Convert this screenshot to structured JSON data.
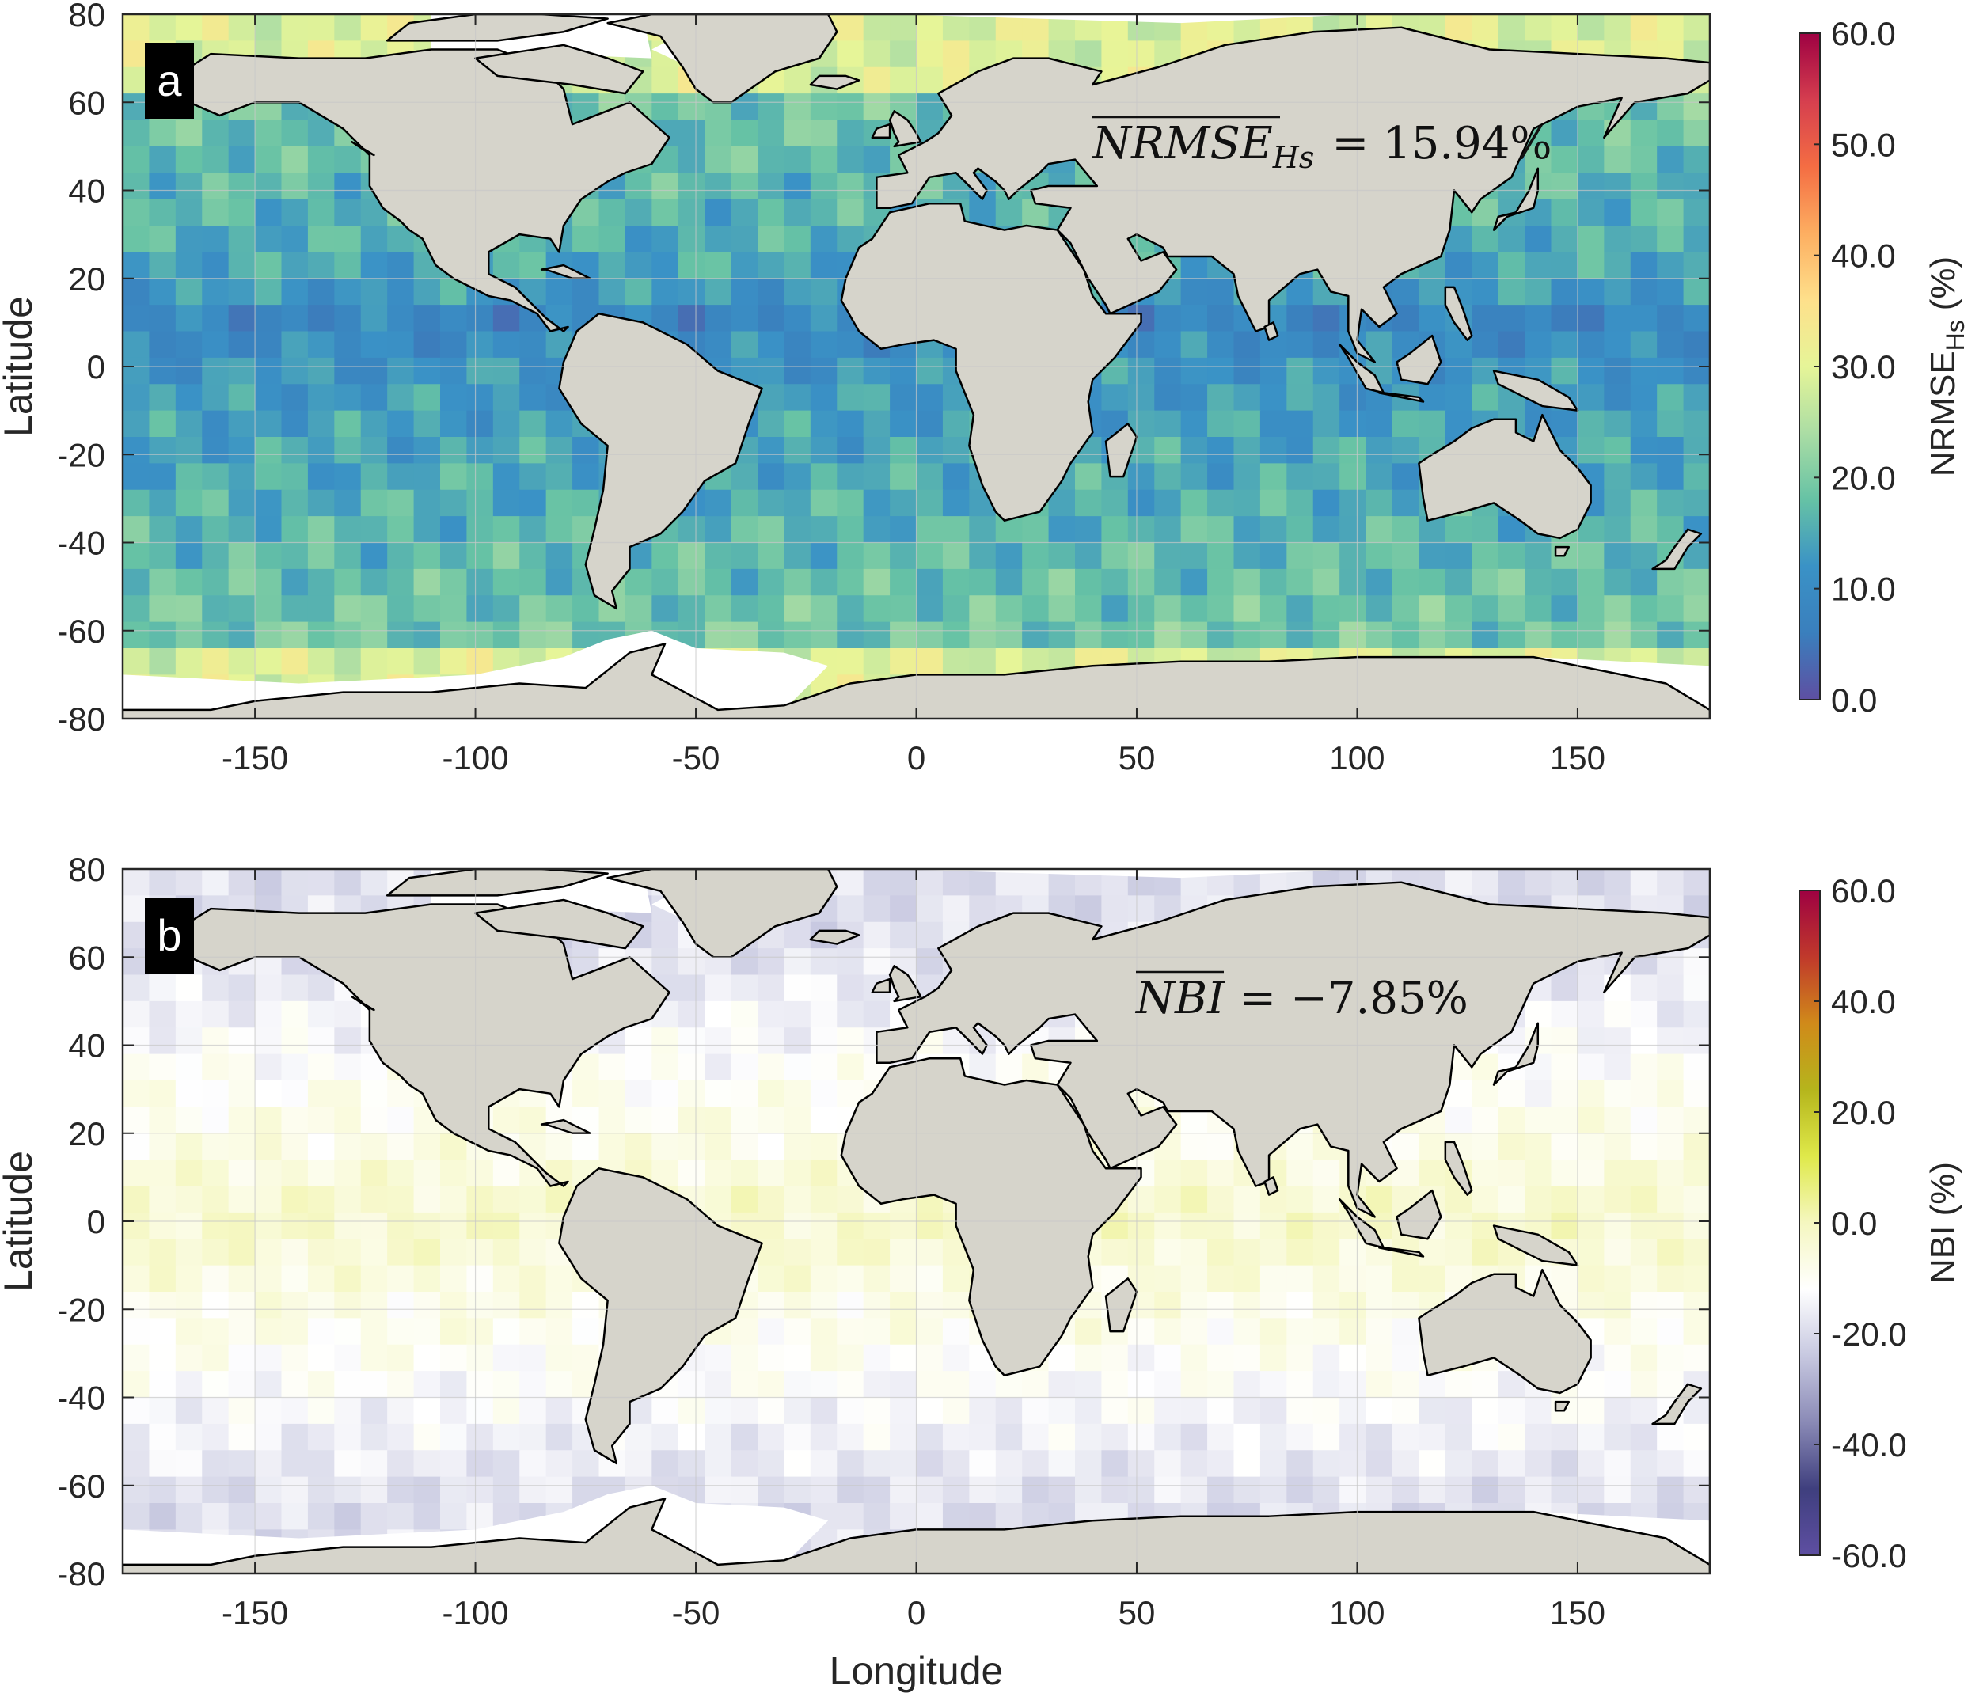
{
  "figure": {
    "colors": {
      "land": "#d6d4cb",
      "ice": "#ffffff",
      "coast": "#000000",
      "grid": "#c8c8c8",
      "frame": "#262626"
    },
    "icons": {
      "panel_label_bg": "black-square"
    }
  },
  "chart_data": [
    {
      "type": "heatmap",
      "panel_label": "a",
      "stat_label": "NRMSE_Hs = 15.94%",
      "stat_prefix": "NRMSE",
      "stat_sub": "Hs",
      "stat_value": "= 15.94%",
      "xlabel": "",
      "ylabel": "Latitude",
      "xlim": [
        -180,
        180
      ],
      "ylim": [
        -80,
        80
      ],
      "xticks": [
        -150,
        -100,
        -50,
        0,
        50,
        100,
        150
      ],
      "yticks": [
        80,
        60,
        40,
        20,
        0,
        -20,
        -40,
        -60,
        -80
      ],
      "xtick_labels": [
        "-150",
        "-100",
        "-50",
        "0",
        "50",
        "100",
        "150"
      ],
      "ytick_labels": [
        "80",
        "60",
        "40",
        "20",
        "0",
        "-20",
        "-40",
        "-60",
        "-80"
      ],
      "grid": true,
      "colorbar": {
        "label": "NRMSE",
        "label_sub": "Hs",
        "label_unit": "(%)",
        "range": [
          0,
          60
        ],
        "ticks": [
          60,
          50,
          40,
          30,
          20,
          10,
          0
        ],
        "tick_labels": [
          "60.0",
          "50.0",
          "40.0",
          "30.0",
          "20.0",
          "10.0",
          "0.0"
        ],
        "colors": [
          "#5e4fa2",
          "#3a7fbd",
          "#3a92c6",
          "#66c2a5",
          "#abdda4",
          "#e6f598",
          "#fee08b",
          "#fdae61",
          "#f46d43",
          "#d53e4f",
          "#9e0142"
        ]
      },
      "mean_value_percent": 15.94
    },
    {
      "type": "heatmap",
      "panel_label": "b",
      "stat_label": "NBI = −7.85%",
      "stat_prefix": "NBI",
      "stat_sub": "",
      "stat_value": "= −7.85%",
      "xlabel": "Longitude",
      "ylabel": "Latitude",
      "xlim": [
        -180,
        180
      ],
      "ylim": [
        -80,
        80
      ],
      "xticks": [
        -150,
        -100,
        -50,
        0,
        50,
        100,
        150
      ],
      "yticks": [
        80,
        60,
        40,
        20,
        0,
        -20,
        -40,
        -60,
        -80
      ],
      "xtick_labels": [
        "-150",
        "-100",
        "-50",
        "0",
        "50",
        "100",
        "150"
      ],
      "ytick_labels": [
        "80",
        "60",
        "40",
        "20",
        "0",
        "-20",
        "-40",
        "-60",
        "-80"
      ],
      "grid": true,
      "colorbar": {
        "label": "NBI (%)",
        "label_sub": "",
        "label_unit": "",
        "range": [
          -60,
          60
        ],
        "ticks": [
          60,
          40,
          20,
          0,
          -20,
          -40,
          -60
        ],
        "tick_labels": [
          "60.0",
          "40.0",
          "20.0",
          "0.0",
          "-20.0",
          "-40.0",
          "-60.0"
        ],
        "colors": [
          "#5e4fa2",
          "#3f3f7e",
          "#8a8ab6",
          "#c7c8e0",
          "#ffffff",
          "#f5f7c0",
          "#dfe94a",
          "#b5b51c",
          "#d08a1a",
          "#c0392b",
          "#9e0142"
        ]
      },
      "mean_value_percent": -7.85
    }
  ]
}
